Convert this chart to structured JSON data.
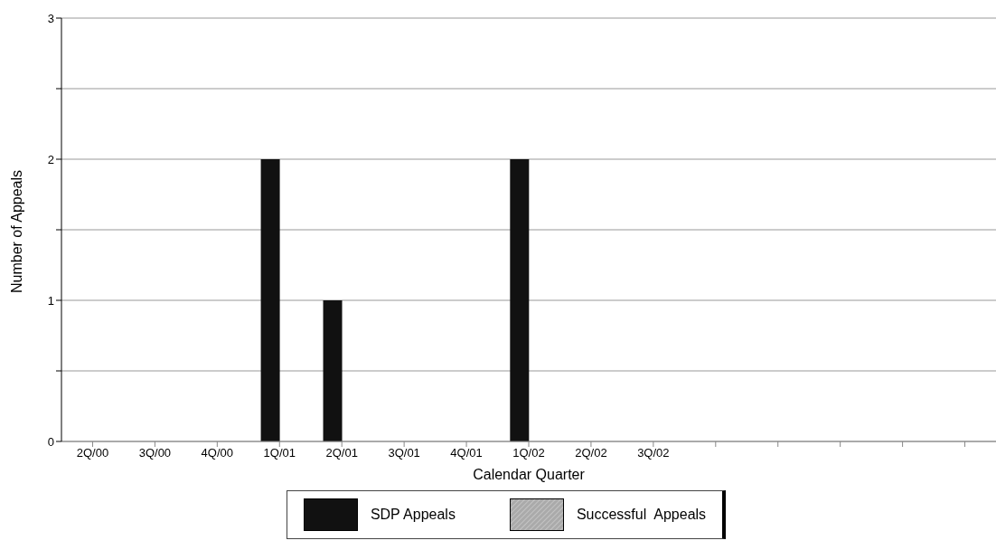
{
  "chart_data": {
    "type": "bar",
    "xlabel": "Calendar Quarter",
    "ylabel": "Number of Appeals",
    "categories": [
      "2Q/00",
      "3Q/00",
      "4Q/00",
      "1Q/01",
      "2Q/01",
      "3Q/01",
      "4Q/01",
      "1Q/02",
      "2Q/02",
      "3Q/02",
      null,
      null,
      null,
      null,
      null
    ],
    "series": [
      {
        "name": "SDP Appeals",
        "color": "#111111",
        "values": [
          0,
          0,
          0,
          2,
          1,
          0,
          0,
          2,
          0,
          0,
          null,
          null,
          null,
          null,
          null
        ]
      },
      {
        "name": "Successful  Appeals",
        "color": "#aaaaaa",
        "values": [
          0,
          0,
          0,
          0,
          0,
          0,
          0,
          0,
          0,
          0,
          null,
          null,
          null,
          null,
          null
        ]
      }
    ],
    "ylim": [
      0,
      3
    ],
    "yticks": [
      0,
      {
        "value": 0.5,
        "label": null
      },
      1,
      {
        "value": 1.5,
        "label": null
      },
      2,
      {
        "value": 2.5,
        "label": null
      },
      3
    ],
    "grid": "y",
    "legend": "bottom"
  }
}
